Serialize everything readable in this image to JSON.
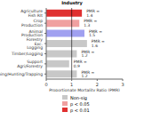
{
  "chart_data": {
    "type": "bar",
    "title": "Industry",
    "orientation": "horizontal",
    "x_label": "Proportionate Mortality Ratio (PMR)",
    "categories": [
      "Agriculture Fish Rlt",
      "Crop Production",
      "Animal Production",
      "Forestry Exc. Logging",
      "Timber/Logging",
      "Support Agri/Forestry",
      "Fishing/Hunting/Trapping"
    ],
    "values": [
      1.4,
      1.3,
      1.5,
      1.6,
      1.2,
      0.9,
      1.2
    ],
    "value_labels": [
      "PMR = 1.4",
      "PMR = 1.3",
      "PMR = 1.5",
      "PMR = 1.6",
      "PMR = 1.2",
      "PMR = 0.9",
      "PMR = 1.2"
    ],
    "data_labels": true,
    "colors": [
      "#e03030",
      "#f0a0a0",
      "#a0a0f0",
      "#c8c8c8",
      "#c8c8c8",
      "#c8c8c8",
      "#c8c8c8"
    ],
    "xlim": [
      0,
      3
    ],
    "xticks": [
      0,
      1,
      2,
      3
    ],
    "reference_line": 1,
    "key": [
      {
        "name": "Non-sig",
        "color": "#c8c8c8"
      },
      {
        "name": "p < 0.05",
        "color": "#f0a0a0"
      },
      {
        "name": "p < 0.01",
        "color": "#e03030"
      }
    ]
  }
}
